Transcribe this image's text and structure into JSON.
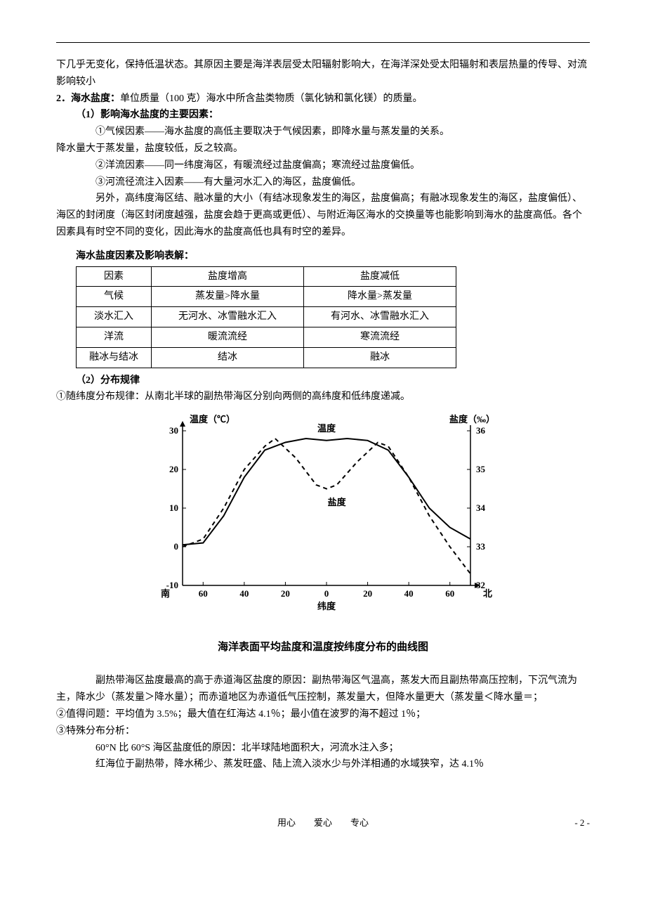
{
  "para_top1": "下几乎无变化，保持低温状态。其原因主要是海洋表层受太阳辐射影响大，在海洋深处受太阳辐射和表层热量的传导、对流影响较小",
  "line_salinity_def": "2．海水盐度：",
  "line_salinity_def_rest": "单位质量（100 克）海水中所含盐类物质（氯化钠和氯化镁）的质量。",
  "h1": "（1）影响海水盐度的主要因素：",
  "f1a": "①气候因素——海水盐度的高低主要取决于气候因素，即降水量与蒸发量的关系。",
  "f1b": "降水量大于蒸发量，盐度较低，反之较高。",
  "f2": "②洋流因素——同一纬度海区，有暖流经过盐度偏高；寒流经过盐度偏低。",
  "f3": "③河流径流注入因素——有大量河水汇入的海区，盐度偏低。",
  "f4": "另外，高纬度海区结、融冰量的大小（有结冰现象发生的海区，盐度偏高；有融冰现象发生的海区，盐度偏低）、海区的封闭度（海区封闭度越强，盐度会趋于更高或更低）、与附近海区海水的交换量等也能影响到海水的盐度高低。各个因素具有时空不同的变化，因此海水的盐度高低也具有时空的差异。",
  "table_title": "海水盐度因素及影响表解：",
  "table": {
    "cols_width": [
      90,
      200,
      200
    ],
    "rows": [
      [
        "因素",
        "盐度增高",
        "盐度减低"
      ],
      [
        "气候",
        "蒸发量>降水量",
        "降水量>蒸发量"
      ],
      [
        "淡水汇入",
        "无河水、冰雪融水汇入",
        "有河水、冰雪融水汇入"
      ],
      [
        "洋流",
        "暖流流经",
        "寒流流经"
      ],
      [
        "融冰与结冰",
        "结冰",
        "融冰"
      ]
    ]
  },
  "h2": "（2）分布规律",
  "rule1": "①随纬度分布规律：从南北半球的副热带海区分别向两侧的高纬度和低纬度递减。",
  "chart": {
    "title_left": "温度（℃）",
    "title_right": "盐度（‰）",
    "label_temp": "温度",
    "label_sal": "盐度",
    "xlabel": "纬度",
    "xlabel_S": "南",
    "xlabel_N": "北",
    "caption": "海洋表面平均盐度和温度按纬度分布的曲线图",
    "y_left": {
      "min": -10,
      "max": 30,
      "ticks": [
        -10,
        0,
        10,
        20,
        30
      ]
    },
    "y_right": {
      "min": 32,
      "max": 36,
      "ticks": [
        32,
        33,
        34,
        35,
        36
      ]
    },
    "x": {
      "ticks": [
        -60,
        -40,
        -20,
        0,
        20,
        40,
        60
      ]
    },
    "temp_color": "#000000",
    "sal_color": "#000000",
    "temp_points": [
      [
        -70,
        0.5
      ],
      [
        -60,
        1
      ],
      [
        -50,
        8
      ],
      [
        -40,
        18
      ],
      [
        -30,
        25
      ],
      [
        -20,
        27
      ],
      [
        -10,
        28
      ],
      [
        0,
        27.5
      ],
      [
        10,
        28
      ],
      [
        20,
        27.5
      ],
      [
        30,
        25
      ],
      [
        40,
        18
      ],
      [
        50,
        10
      ],
      [
        60,
        5
      ],
      [
        70,
        2
      ]
    ],
    "sal_points": [
      [
        -70,
        33.0
      ],
      [
        -60,
        33.2
      ],
      [
        -50,
        34.0
      ],
      [
        -40,
        35.0
      ],
      [
        -30,
        35.6
      ],
      [
        -25,
        35.8
      ],
      [
        -15,
        35.3
      ],
      [
        -5,
        34.6
      ],
      [
        0,
        34.5
      ],
      [
        5,
        34.6
      ],
      [
        15,
        35.2
      ],
      [
        25,
        35.7
      ],
      [
        30,
        35.6
      ],
      [
        40,
        34.8
      ],
      [
        50,
        33.8
      ],
      [
        60,
        33.0
      ],
      [
        70,
        32.3
      ]
    ]
  },
  "para_sub": "副热带海区盐度最高的高于赤道海区盐度的原因：副热带海区气温高，蒸发大而且副热带高压控制，下沉气流为主，降水少（蒸发量＞降水量）；而赤道地区为赤道低气压控制，蒸发量大，但降水量更大（蒸发量＜降水量＝；",
  "rule2": "②值得问题：平均值为 3.5%；最大值在红海达 4.1％；最小值在波罗的海不超过 1％；",
  "rule3": "③特殊分布分析：",
  "sp1": "60°N 比 60°S 海区盐度低的原因：北半球陆地面积大，河流水注入多；",
  "sp2": "红海位于副热带，降水稀少、蒸发旺盛、陆上流入淡水少与外洋相通的水域狭窄，达 4.1％",
  "footer_text": "用心　　爱心　　专心",
  "footer_page": "- 2 -"
}
